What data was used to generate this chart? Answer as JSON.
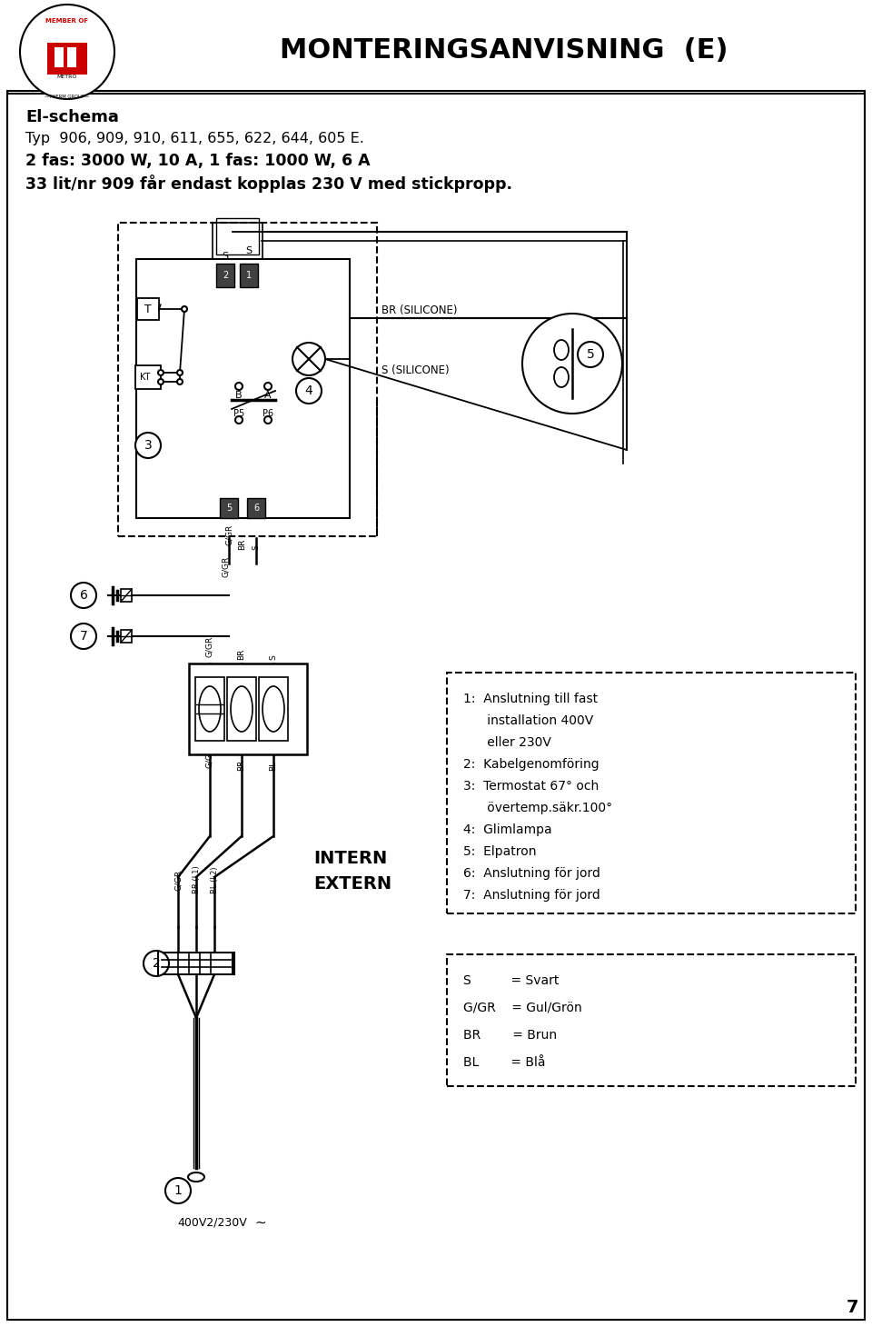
{
  "title": "MONTERINGSANVISNING  (E)",
  "subtitle_bold": "El-schema",
  "subtitle_line1": "Typ  906, 909, 910, 611, 655, 622, 644, 605 E.",
  "subtitle_line2": "2 fas: 3000 W, 10 A, 1 fas: 1000 W, 6 A",
  "subtitle_line3": "33 lit/nr 909 får endast kopplas 230 V med stickpropp.",
  "legend1_items": [
    "1:  Anslutning till fast",
    "      installation 400V",
    "      eller 230V",
    "2:  Kabelgenomföring",
    "3:  Termostat 67° och",
    "      övertemp.säkr.100°",
    "4:  Glimlampa",
    "5:  Elpatron",
    "6:  Anslutning för jord",
    "7:  Anslutning för jord"
  ],
  "legend2_items": [
    "S          = Svart",
    "G/GR    = Gul/Grön",
    "BR        = Brun",
    "BL        = Blå"
  ],
  "page_number": "7",
  "bg_color": "#ffffff"
}
